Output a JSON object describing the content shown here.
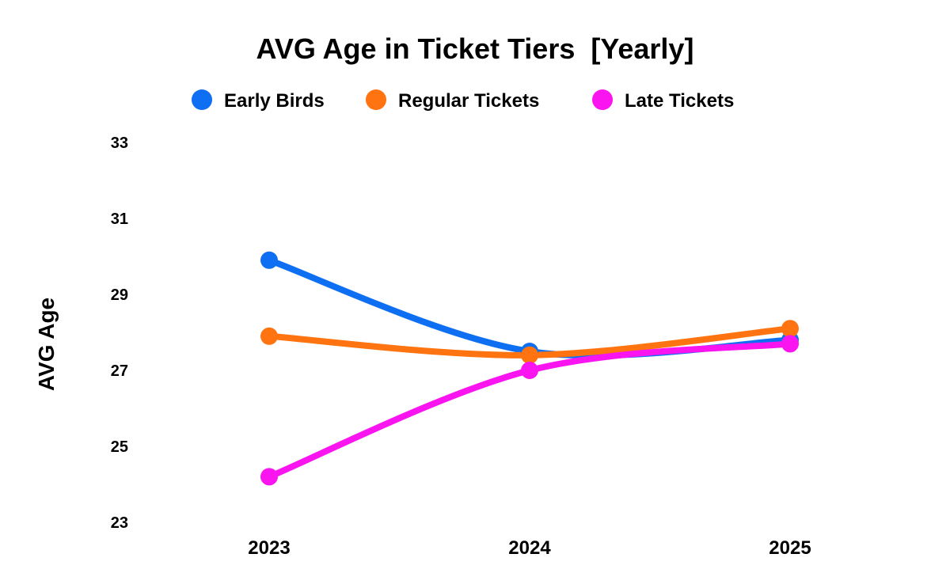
{
  "chart_data": {
    "type": "line",
    "title": "AVG Age in Ticket Tiers  [Yearly]",
    "xlabel": "",
    "ylabel": "AVG Age",
    "x": [
      "2023",
      "2024",
      "2025"
    ],
    "ylim": [
      23,
      33
    ],
    "yticks": [
      "23",
      "25",
      "27",
      "29",
      "31",
      "33"
    ],
    "grid": false,
    "legend_position": "top",
    "smooth": true,
    "series": [
      {
        "name": "Early Birds",
        "color": "#0F6FF2",
        "values": [
          29.9,
          27.5,
          27.8
        ]
      },
      {
        "name": "Regular Tickets",
        "color": "#FF7410",
        "values": [
          27.9,
          27.4,
          28.1
        ]
      },
      {
        "name": "Late Tickets",
        "color": "#FA14F0",
        "values": [
          24.2,
          27.0,
          27.7
        ]
      }
    ]
  }
}
